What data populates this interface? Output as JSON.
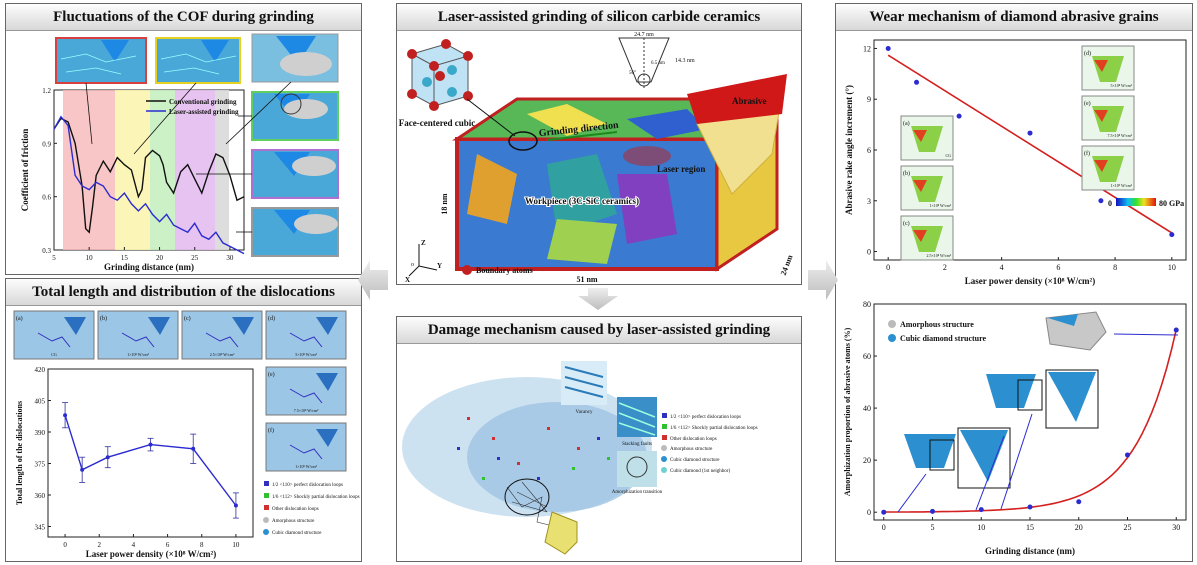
{
  "p1": {
    "title": "Fluctuations of the COF during grinding",
    "ylabel": "Coefficient of friction",
    "xlabel": "Grinding distance (nm)",
    "legend": [
      "Conventional grinding",
      "Laser-assisted grinding"
    ],
    "xticks": [
      "5",
      "10",
      "15",
      "20",
      "25",
      "30"
    ],
    "yticks": [
      "0.3",
      "0.6",
      "0.9",
      "1.2"
    ]
  },
  "p2": {
    "title": "Laser-assisted grinding of silicon carbide ceramics",
    "fcc_label": "Face-centered cubic",
    "grinding_direction": "Grinding direction",
    "laser_region": "Laser region",
    "abrasive": "Abrasive",
    "workpiece": "Workpiece (3C-SiC ceramics)",
    "dim_height": "18 nm",
    "dim_length": "51 nm",
    "dim_depth": "24 nm",
    "boundary_atoms": "Boundary atoms",
    "tip_width": "24.7 nm",
    "tip_height": "14.3 nm",
    "tip_radius": "6.5 nm",
    "tip_angle": "56°",
    "axes": [
      "Z",
      "Y",
      "X",
      "o"
    ]
  },
  "p3": {
    "title": "Wear mechanism of diamond abrasive grains",
    "ylabel": "Abrasive rake angle increment (°)",
    "xlabel": "Laser power density (×10⁸ W/cm²)",
    "xticks": [
      "0",
      "2",
      "4",
      "6",
      "8",
      "10"
    ],
    "yticks": [
      "0",
      "3",
      "6",
      "9",
      "12"
    ],
    "colorbar_min": "0",
    "colorbar_max": "80 GPa",
    "insets": [
      {
        "tag": "(a)",
        "label": "CG"
      },
      {
        "tag": "(b)",
        "label": "1×10⁸ W/cm²"
      },
      {
        "tag": "(c)",
        "label": "2.5×10⁸ W/cm²"
      },
      {
        "tag": "(d)",
        "label": "5×10⁸ W/cm²"
      },
      {
        "tag": "(e)",
        "label": "7.5×10⁸ W/cm²"
      },
      {
        "tag": "(f)",
        "label": "1×10⁹ W/cm²"
      }
    ]
  },
  "p4": {
    "title": "Total length and distribution of the dislocations",
    "ylabel": "Total length of the dislocations",
    "xlabel": "Laser power density (×10⁸ W/cm²)",
    "xticks": [
      "0",
      "2",
      "4",
      "6",
      "8",
      "10"
    ],
    "yticks": [
      "345",
      "360",
      "375",
      "390",
      "405",
      "420"
    ],
    "insets": [
      {
        "tag": "(a)",
        "label": "CG"
      },
      {
        "tag": "(b)",
        "label": "1×10⁸ W/cm²"
      },
      {
        "tag": "(c)",
        "label": "2.5×10⁸ W/cm²"
      },
      {
        "tag": "(d)",
        "label": "5×10⁸ W/cm²"
      },
      {
        "tag": "(e)",
        "label": "7.5×10⁸ W/cm²"
      },
      {
        "tag": "(f)",
        "label": "1×10⁹ W/cm²"
      }
    ],
    "legend": [
      "1/2 <110> perfect dislocation loops",
      "1/6 <112> Shockly partial dislocation loops",
      "Other dislocation loops",
      "Amorphous structure",
      "Cubic diamond structure"
    ]
  },
  "p5": {
    "title": "Damage mechanism caused by laser-assisted grinding",
    "vacancy": "Vacancy",
    "stacking": "Stacking faults",
    "amorph": "Amorphization transition",
    "legend": [
      "1/2 <110> perfect dislocation loops",
      "1/6 <112> Shockly partial dislocation loops",
      "Other dislocation loops",
      "Amorphous structure",
      "Cubic diamond structure",
      "Cubic diamond (1st neighbor)"
    ]
  },
  "p6": {
    "ylabel": "Amorphization proportion of abrasive atoms (%)",
    "xlabel": "Grinding distance (nm)",
    "xticks": [
      "0",
      "5",
      "10",
      "15",
      "20",
      "25",
      "30"
    ],
    "yticks": [
      "0",
      "20",
      "40",
      "60",
      "80"
    ],
    "legend": [
      "Amorphous structure",
      "Cubic diamond structure"
    ]
  },
  "colors": {
    "red": "#d42020",
    "blue": "#2b2bd0",
    "grid": "#cccccc"
  },
  "chart_data": [
    {
      "type": "line",
      "title": "",
      "xlabel": "Grinding distance (nm)",
      "ylabel": "Coefficient of friction",
      "xlim": [
        5,
        32
      ],
      "ylim": [
        0.3,
        1.2
      ],
      "series": [
        {
          "name": "Conventional grinding",
          "x": [
            5,
            6,
            7,
            8,
            9,
            9.5,
            10,
            10.5,
            11,
            12,
            13,
            14,
            15,
            16,
            17,
            17.5,
            18,
            19,
            20,
            20.5,
            21,
            22,
            23,
            24,
            25,
            26,
            27,
            28,
            29,
            30,
            31,
            32
          ],
          "values": [
            0.98,
            1.04,
            1.02,
            0.9,
            0.66,
            0.42,
            0.4,
            0.55,
            0.72,
            0.8,
            0.74,
            0.82,
            0.78,
            0.75,
            0.6,
            0.64,
            0.82,
            0.86,
            0.83,
            0.78,
            0.68,
            0.62,
            0.74,
            0.78,
            0.7,
            0.62,
            0.74,
            0.84,
            0.82,
            0.72,
            0.58,
            0.6
          ]
        },
        {
          "name": "Laser-assisted grinding",
          "x": [
            5,
            6,
            7,
            8,
            9,
            10,
            11,
            12,
            13,
            14,
            15,
            16,
            17,
            18,
            19,
            20,
            21,
            22,
            23,
            24,
            25,
            26,
            27,
            28,
            29,
            30,
            31,
            32
          ],
          "values": [
            0.98,
            1.05,
            1.0,
            0.72,
            0.66,
            0.64,
            0.68,
            0.66,
            0.6,
            0.58,
            0.62,
            0.56,
            0.52,
            0.56,
            0.5,
            0.46,
            0.5,
            0.44,
            0.42,
            0.4,
            0.45,
            0.38,
            0.36,
            0.4,
            0.34,
            0.32,
            0.3,
            0.28
          ]
        }
      ]
    },
    {
      "type": "scatter",
      "title": "",
      "xlabel": "Laser power density (×10⁸ W/cm²)",
      "ylabel": "Abrasive rake angle increment (°)",
      "xlim": [
        -0.5,
        10.5
      ],
      "ylim": [
        -0.5,
        12.5
      ],
      "series": [
        {
          "name": "points",
          "x": [
            0,
            1,
            2.5,
            5,
            7.5,
            10
          ],
          "values": [
            12,
            10,
            8,
            7,
            3,
            1
          ]
        },
        {
          "name": "fit",
          "x": [
            0,
            10
          ],
          "values": [
            11.6,
            1.1
          ]
        }
      ]
    },
    {
      "type": "line",
      "title": "",
      "xlabel": "Laser power density (×10⁸ W/cm²)",
      "ylabel": "Total length of the dislocations",
      "xlim": [
        -1,
        11
      ],
      "ylim": [
        340,
        420
      ],
      "series": [
        {
          "name": "",
          "x": [
            0,
            1,
            2.5,
            5,
            7.5,
            10
          ],
          "values": [
            398,
            372,
            378,
            384,
            382,
            355
          ],
          "errors": [
            6,
            6,
            5,
            3,
            7,
            6
          ]
        }
      ]
    },
    {
      "type": "scatter",
      "title": "",
      "xlabel": "Grinding distance (nm)",
      "ylabel": "Amorphization proportion of abrasive atoms (%)",
      "xlim": [
        -1,
        31
      ],
      "ylim": [
        -3,
        80
      ],
      "series": [
        {
          "name": "points",
          "x": [
            0,
            5,
            10,
            15,
            20,
            25,
            30
          ],
          "values": [
            0,
            0.3,
            1,
            2,
            4,
            22,
            70
          ]
        }
      ]
    }
  ]
}
